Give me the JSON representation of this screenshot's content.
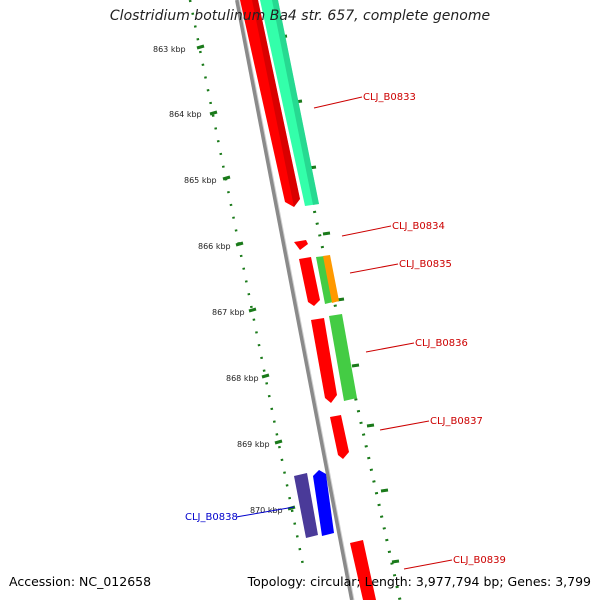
{
  "title": "Clostridium botulinum Ba4 str. 657, complete genome",
  "footer": {
    "accession": "Accession: NC_012658",
    "summary": "Topology: circular; Length: 3,977,794 bp; Genes: 3,799"
  },
  "colors": {
    "forward_red": "#ff0000",
    "teal": "#33ffaa",
    "green": "#44cc44",
    "orange": "#ff9900",
    "blue": "#0000ff",
    "navy": "#4a3a99",
    "backbone": "#8a8a8a",
    "tick_green": "#1a7a1a",
    "label_red": "#cc0000",
    "label_blue": "#0000cc"
  },
  "ticks": [
    "863 kbp",
    "864 kbp",
    "865 kbp",
    "866 kbp",
    "867 kbp",
    "868 kbp",
    "869 kbp",
    "870 kbp"
  ],
  "gene_labels": [
    {
      "text": "CLJ_B0833",
      "color": "red"
    },
    {
      "text": "CLJ_B0834",
      "color": "red"
    },
    {
      "text": "CLJ_B0835",
      "color": "red"
    },
    {
      "text": "CLJ_B0836",
      "color": "red"
    },
    {
      "text": "CLJ_B0837",
      "color": "red"
    },
    {
      "text": "CLJ_B0838",
      "color": "blue"
    },
    {
      "text": "CLJ_B0839",
      "color": "red"
    }
  ]
}
